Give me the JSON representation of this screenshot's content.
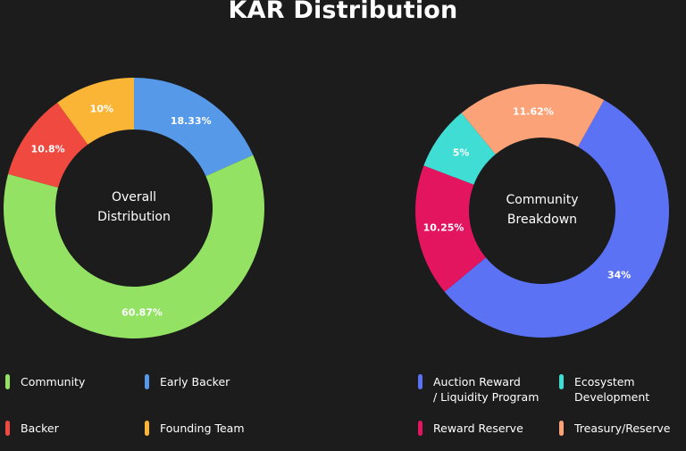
{
  "header": {
    "title": "KAR Distribution"
  },
  "chart_data": [
    {
      "type": "pie",
      "title": "",
      "center_label": "Overall\nDistribution",
      "categories": [
        "Early Backer",
        "Community",
        "Backer",
        "Founding Team"
      ],
      "values": [
        18.33,
        60.87,
        10.8,
        10
      ],
      "value_labels": [
        "18.33%",
        "60.87%",
        "10.8%",
        "10%"
      ],
      "colors": [
        "#5599e8",
        "#93e264",
        "#f04a40",
        "#fbb536"
      ],
      "legend": [
        {
          "label": "Community",
          "color": "#93e264"
        },
        {
          "label": "Early Backer",
          "color": "#5599e8"
        },
        {
          "label": "Backer",
          "color": "#f04a40"
        },
        {
          "label": "Founding Team",
          "color": "#fbb536"
        }
      ]
    },
    {
      "type": "pie",
      "title": "",
      "center_label": "Community\nBreakdown",
      "categories": [
        "Auction Reward / Liquidity Program",
        "Reward Reserve",
        "Ecosystem Development",
        "Treasury/Reserve"
      ],
      "values": [
        34,
        10.25,
        5,
        11.62
      ],
      "value_labels": [
        "34%",
        "10.25%",
        "5%",
        "11.62%"
      ],
      "colors": [
        "#5b72f5",
        "#e4155f",
        "#40ddd4",
        "#fba278"
      ],
      "legend": [
        {
          "label": "Auction Reward\n/ Liquidity Program",
          "color": "#5b72f5"
        },
        {
          "label": "Ecosystem\nDevelopment",
          "color": "#40ddd4"
        },
        {
          "label": "Reward Reserve",
          "color": "#e4155f"
        },
        {
          "label": "Treasury/Reserve",
          "color": "#fba278"
        }
      ]
    }
  ]
}
